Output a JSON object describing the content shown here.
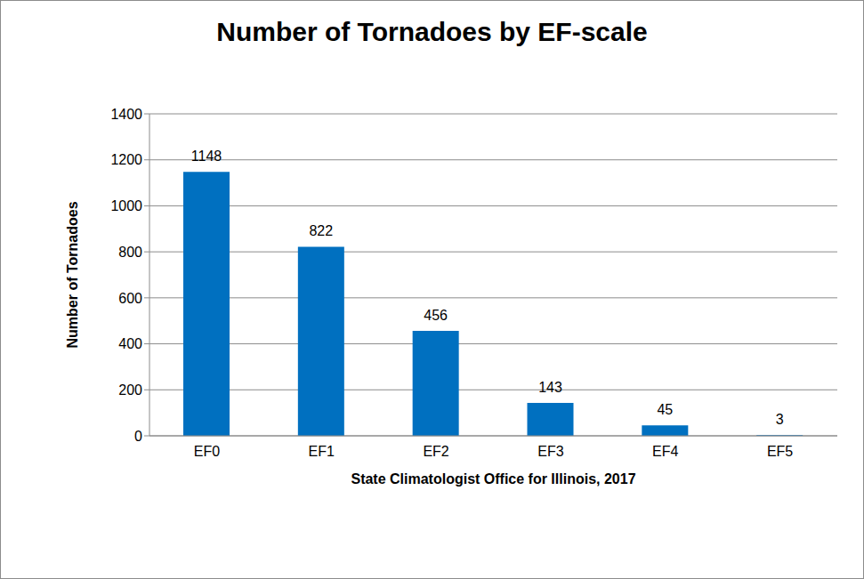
{
  "chart_data": {
    "type": "bar",
    "title": "Number of Tornadoes by EF-scale",
    "x_label": "State Climatologist Office for Illinois, 2017",
    "y_label": "Number of Tornadoes",
    "categories": [
      "EF0",
      "EF1",
      "EF2",
      "EF3",
      "EF4",
      "EF5"
    ],
    "values": [
      1148,
      822,
      456,
      143,
      45,
      3
    ],
    "color": "#0070c0",
    "ylim": [
      0,
      1400
    ],
    "yticks": [
      0,
      200,
      400,
      600,
      800,
      1000,
      1200,
      1400
    ],
    "grid": true,
    "data_labels": true
  }
}
